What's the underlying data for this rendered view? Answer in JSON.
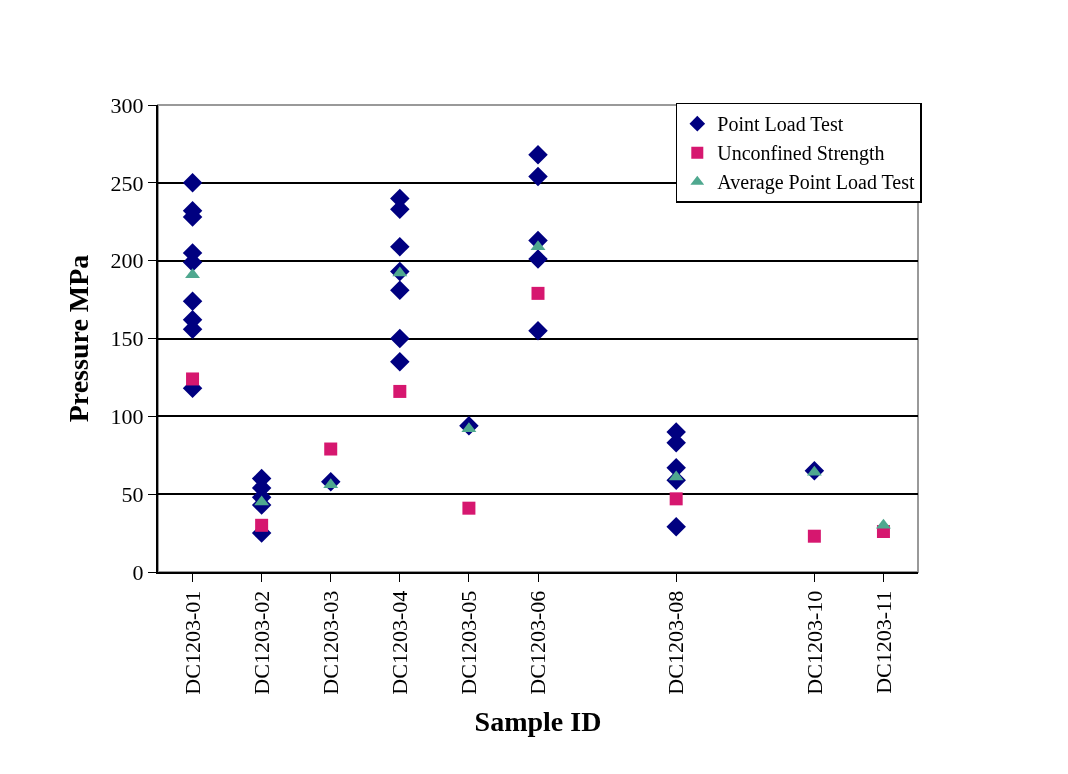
{
  "chart_data": {
    "type": "scatter",
    "xlabel": "Sample ID",
    "ylabel": "Pressure MPa",
    "categories": [
      "DC1203-01",
      "DC1203-02",
      "DC1203-03",
      "DC1203-04",
      "DC1203-05",
      "DC1203-06",
      null,
      "DC1203-08",
      null,
      "DC1203-10",
      "DC1203-11"
    ],
    "ylim": [
      0,
      300
    ],
    "yticks": [
      0,
      50,
      100,
      150,
      200,
      250,
      300
    ],
    "grid": "y",
    "legend": "top right",
    "series": [
      {
        "name": "Point Load Test",
        "color": "#000080",
        "marker": "diamond",
        "x": [
          "DC1203-01",
          "DC1203-01",
          "DC1203-01",
          "DC1203-01",
          "DC1203-01",
          "DC1203-01",
          "DC1203-01",
          "DC1203-01",
          "DC1203-01",
          "DC1203-02",
          "DC1203-02",
          "DC1203-02",
          "DC1203-02",
          "DC1203-02",
          "DC1203-03",
          "DC1203-04",
          "DC1203-04",
          "DC1203-04",
          "DC1203-04",
          "DC1203-04",
          "DC1203-04",
          "DC1203-04",
          "DC1203-05",
          "DC1203-06",
          "DC1203-06",
          "DC1203-06",
          "DC1203-06",
          "DC1203-06",
          "DC1203-08",
          "DC1203-08",
          "DC1203-08",
          "DC1203-08",
          "DC1203-08",
          "DC1203-10"
        ],
        "values": [
          250,
          232,
          228,
          205,
          199,
          174,
          162,
          156,
          118,
          60,
          54,
          48,
          43,
          25,
          58,
          240,
          233,
          209,
          193,
          181,
          150,
          135,
          94,
          268,
          254,
          213,
          201,
          155,
          90,
          83,
          67,
          59,
          29,
          65
        ]
      },
      {
        "name": "Unconfined Strength",
        "color": "#d6176f",
        "marker": "square",
        "x": [
          "DC1203-01",
          "DC1203-02",
          "DC1203-03",
          "DC1203-04",
          "DC1203-05",
          "DC1203-06",
          "DC1203-08",
          "DC1203-10",
          "DC1203-11"
        ],
        "values": [
          124,
          30,
          79,
          116,
          41,
          179,
          47,
          23,
          26
        ]
      },
      {
        "name": "Average Point Load Test",
        "color": "#4fa88f",
        "marker": "triangle",
        "x": [
          "DC1203-01",
          "DC1203-02",
          "DC1203-03",
          "DC1203-04",
          "DC1203-05",
          "DC1203-06",
          "DC1203-08",
          "DC1203-10",
          "DC1203-11"
        ],
        "values": [
          191,
          45,
          56,
          192,
          92,
          209,
          61,
          64,
          30
        ]
      }
    ]
  }
}
